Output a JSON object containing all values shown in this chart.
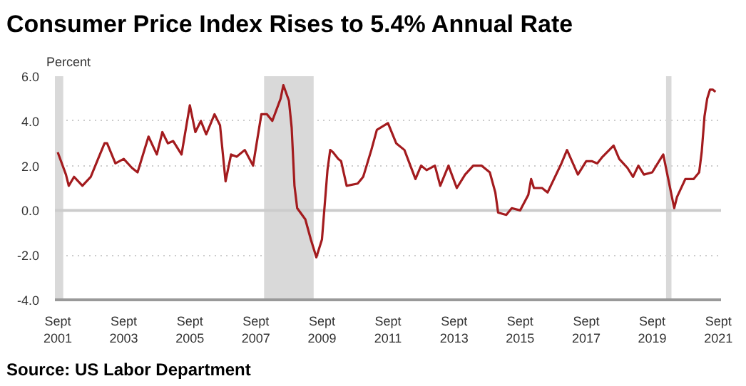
{
  "chart_data": {
    "type": "line",
    "title": "Consumer Price Index Rises to 5.4% Annual Rate",
    "ylabel": "Percent",
    "annotations": [
      "Source: US Labor Department"
    ],
    "x": [
      "2001-09",
      "2001-12",
      "2002-01",
      "2002-03",
      "2002-06",
      "2002-09",
      "2002-12",
      "2003-02",
      "2003-03",
      "2003-06",
      "2003-09",
      "2003-12",
      "2004-02",
      "2004-06",
      "2004-09",
      "2004-11",
      "2005-01",
      "2005-03",
      "2005-06",
      "2005-09",
      "2005-11",
      "2006-01",
      "2006-03",
      "2006-06",
      "2006-08",
      "2006-10",
      "2006-12",
      "2007-02",
      "2007-05",
      "2007-08",
      "2007-11",
      "2008-01",
      "2008-03",
      "2008-06",
      "2008-07",
      "2008-09",
      "2008-10",
      "2008-11",
      "2008-12",
      "2009-03",
      "2009-05",
      "2009-07",
      "2009-09",
      "2009-11",
      "2009-12",
      "2010-01",
      "2010-03",
      "2010-04",
      "2010-06",
      "2010-10",
      "2010-12",
      "2011-03",
      "2011-05",
      "2011-09",
      "2011-12",
      "2012-03",
      "2012-07",
      "2012-09",
      "2012-11",
      "2013-02",
      "2013-04",
      "2013-07",
      "2013-10",
      "2014-01",
      "2014-04",
      "2014-07",
      "2014-10",
      "2014-12",
      "2015-01",
      "2015-04",
      "2015-06",
      "2015-09",
      "2015-12",
      "2016-01",
      "2016-02",
      "2016-05",
      "2016-07",
      "2016-12",
      "2017-02",
      "2017-06",
      "2017-09",
      "2017-11",
      "2018-01",
      "2018-03",
      "2018-07",
      "2018-09",
      "2018-12",
      "2019-02",
      "2019-04",
      "2019-06",
      "2019-09",
      "2019-12",
      "2020-01",
      "2020-05",
      "2020-06",
      "2020-09",
      "2020-12",
      "2021-02",
      "2021-03",
      "2021-04",
      "2021-05",
      "2021-06",
      "2021-07",
      "2021-08"
    ],
    "series": [
      {
        "color": "#a31b1e",
        "values": [
          2.6,
          1.6,
          1.1,
          1.5,
          1.1,
          1.5,
          2.4,
          3.0,
          3.0,
          2.1,
          2.3,
          1.9,
          1.7,
          3.3,
          2.5,
          3.5,
          3.0,
          3.1,
          2.5,
          4.7,
          3.5,
          4.0,
          3.4,
          4.3,
          3.8,
          1.3,
          2.5,
          2.4,
          2.7,
          2.0,
          4.3,
          4.3,
          4.0,
          5.0,
          5.6,
          4.9,
          3.7,
          1.1,
          0.1,
          -0.4,
          -1.3,
          -2.1,
          -1.3,
          1.8,
          2.7,
          2.6,
          2.3,
          2.2,
          1.1,
          1.2,
          1.5,
          2.7,
          3.6,
          3.9,
          3.0,
          2.7,
          1.4,
          2.0,
          1.8,
          2.0,
          1.1,
          2.0,
          1.0,
          1.6,
          2.0,
          2.0,
          1.7,
          0.8,
          -0.1,
          -0.2,
          0.1,
          0.0,
          0.7,
          1.4,
          1.0,
          1.0,
          0.8,
          2.1,
          2.7,
          1.6,
          2.2,
          2.2,
          2.1,
          2.4,
          2.9,
          2.3,
          1.9,
          1.5,
          2.0,
          1.6,
          1.7,
          2.3,
          2.5,
          0.1,
          0.6,
          1.4,
          1.4,
          1.7,
          2.6,
          4.2,
          5.0,
          5.4,
          5.4,
          5.3
        ]
      }
    ],
    "xlim": [
      "2001-08",
      "2021-10"
    ],
    "xticks": [
      {
        "value": "2001-09",
        "label": "Sept\n2001"
      },
      {
        "value": "2003-09",
        "label": "Sept\n2003"
      },
      {
        "value": "2005-09",
        "label": "Sept\n2005"
      },
      {
        "value": "2007-09",
        "label": "Sept\n2007"
      },
      {
        "value": "2009-09",
        "label": "Sept\n2009"
      },
      {
        "value": "2011-09",
        "label": "Sept\n2011"
      },
      {
        "value": "2013-09",
        "label": "Sept\n2013"
      },
      {
        "value": "2015-09",
        "label": "Sept\n2015"
      },
      {
        "value": "2017-09",
        "label": "Sept\n2017"
      },
      {
        "value": "2019-09",
        "label": "Sept\n2019"
      },
      {
        "value": "2021-09",
        "label": "Sept\n2021"
      }
    ],
    "ylim": [
      -4,
      6
    ],
    "yticks": [
      {
        "value": -4,
        "label": "-4.0"
      },
      {
        "value": -2,
        "label": "-2.0"
      },
      {
        "value": 0,
        "label": "0.0"
      },
      {
        "value": 2,
        "label": "2.0"
      },
      {
        "value": 4,
        "label": "4.0"
      },
      {
        "value": 6,
        "label": "6.0"
      }
    ],
    "grid": "y",
    "ref_lines": [
      {
        "axis": "y",
        "value": 0,
        "color": "#cccccc",
        "line_style": "solid"
      }
    ],
    "bands": [
      {
        "axis": "x",
        "from": "2001-03",
        "to": "2001-11",
        "color": "#d9d9d9"
      },
      {
        "axis": "x",
        "from": "2007-12",
        "to": "2009-06",
        "color": "#d9d9d9"
      },
      {
        "axis": "x",
        "from": "2020-02",
        "to": "2020-04",
        "color": "#d9d9d9"
      }
    ],
    "line_style": "solid",
    "marker": "none"
  }
}
